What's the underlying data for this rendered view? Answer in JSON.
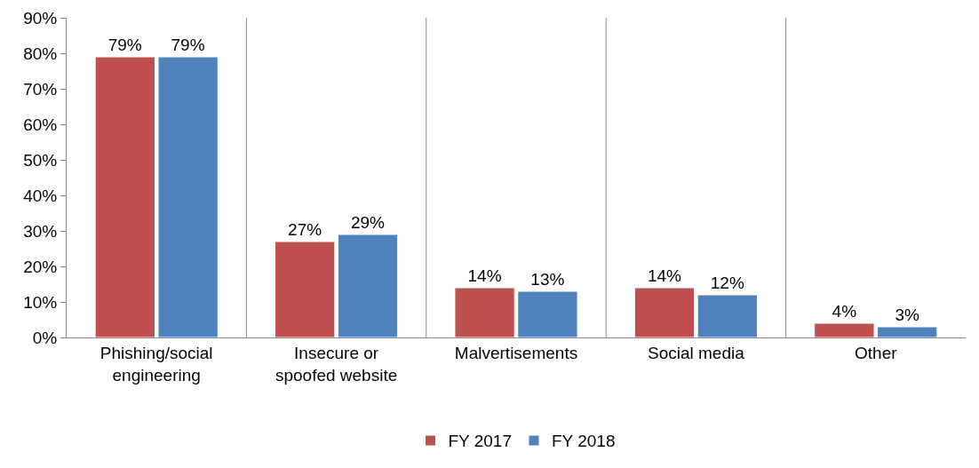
{
  "chart_data": {
    "type": "bar",
    "categories": [
      "Phishing/social engineering",
      "Insecure or spoofed website",
      "Malvertisements",
      "Social media",
      "Other"
    ],
    "series": [
      {
        "name": "FY 2017",
        "color": "#c0504d",
        "values": [
          79,
          27,
          14,
          14,
          4
        ],
        "value_labels": [
          "79%",
          "27%",
          "14%",
          "14%",
          "4%"
        ]
      },
      {
        "name": "FY 2018",
        "color": "#4f81bd",
        "values": [
          79,
          29,
          13,
          12,
          3
        ],
        "value_labels": [
          "79%",
          "29%",
          "13%",
          "12%",
          "3%"
        ]
      }
    ],
    "ylim": [
      0,
      90
    ],
    "yticks": [
      {
        "value": 0,
        "label": "0%"
      },
      {
        "value": 10,
        "label": "10%"
      },
      {
        "value": 20,
        "label": "20%"
      },
      {
        "value": 30,
        "label": "30%"
      },
      {
        "value": 40,
        "label": "40%"
      },
      {
        "value": 50,
        "label": "50%"
      },
      {
        "value": 60,
        "label": "60%"
      },
      {
        "value": 70,
        "label": "70%"
      },
      {
        "value": 80,
        "label": "80%"
      },
      {
        "value": 90,
        "label": "90%"
      }
    ],
    "grid": "x",
    "legend": "bottom"
  }
}
